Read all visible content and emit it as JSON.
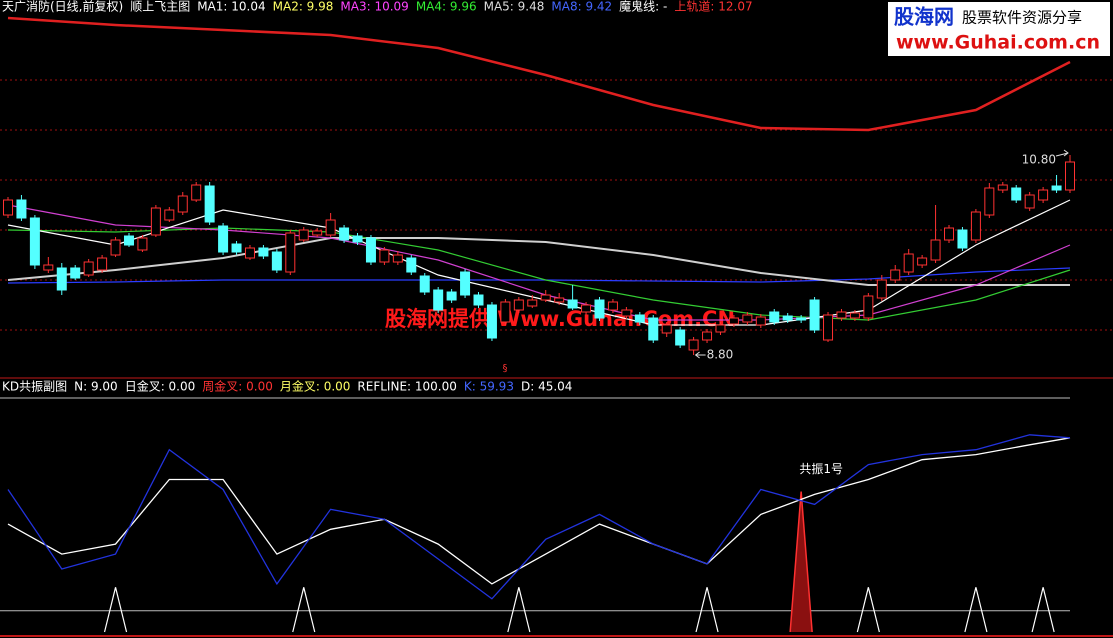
{
  "header": {
    "items": [
      {
        "text": "天广消防(日线,前复权)",
        "color": "#ffffff"
      },
      {
        "text": "顺上飞主图",
        "color": "#ffffff"
      },
      {
        "text": "MA1: 10.04",
        "color": "#ffffff"
      },
      {
        "text": "MA2: 9.98",
        "color": "#ffff66"
      },
      {
        "text": "MA3: 10.09",
        "color": "#ff44ff"
      },
      {
        "text": "MA4: 9.96",
        "color": "#33ee33"
      },
      {
        "text": "MA5: 9.48",
        "color": "#dddddd"
      },
      {
        "text": "MA8: 9.42",
        "color": "#4466ff"
      },
      {
        "text": "魔鬼线: -",
        "color": "#ffffff"
      },
      {
        "text": "上轨道: 12.07",
        "color": "#ff3333"
      }
    ]
  },
  "watermark": {
    "logo": "股海网",
    "slogan": "股票软件资源分享",
    "url": "www.Guhai.com.cn"
  },
  "price_panel": {
    "ylim": [
      8.65,
      12.35
    ],
    "up_color": "#ff3232",
    "down_color": "#54ffff",
    "candles": [
      [
        10.2,
        10.38,
        10.17,
        10.35
      ],
      [
        10.35,
        10.4,
        10.14,
        10.17
      ],
      [
        10.17,
        10.2,
        9.66,
        9.7
      ],
      [
        9.65,
        9.78,
        9.62,
        9.7
      ],
      [
        9.67,
        9.72,
        9.4,
        9.45
      ],
      [
        9.67,
        9.7,
        9.55,
        9.57
      ],
      [
        9.6,
        9.76,
        9.58,
        9.73
      ],
      [
        9.65,
        9.8,
        9.62,
        9.77
      ],
      [
        9.8,
        9.98,
        9.78,
        9.95
      ],
      [
        9.99,
        10.02,
        9.88,
        9.9
      ],
      [
        9.85,
        10.0,
        9.83,
        9.97
      ],
      [
        10.0,
        10.3,
        9.98,
        10.27
      ],
      [
        10.15,
        10.28,
        10.13,
        10.25
      ],
      [
        10.23,
        10.43,
        10.2,
        10.39
      ],
      [
        10.35,
        10.53,
        10.33,
        10.5
      ],
      [
        10.49,
        10.53,
        10.1,
        10.13
      ],
      [
        10.09,
        10.12,
        9.8,
        9.83
      ],
      [
        9.91,
        9.94,
        9.8,
        9.83
      ],
      [
        9.77,
        9.9,
        9.75,
        9.87
      ],
      [
        9.87,
        9.9,
        9.76,
        9.79
      ],
      [
        9.83,
        9.86,
        9.62,
        9.65
      ],
      [
        9.63,
        10.05,
        9.6,
        10.02
      ],
      [
        9.95,
        10.08,
        9.93,
        10.05
      ],
      [
        10.0,
        10.07,
        9.98,
        10.04
      ],
      [
        10.0,
        10.22,
        9.98,
        10.15
      ],
      [
        10.07,
        10.1,
        9.92,
        9.95
      ],
      [
        9.99,
        10.02,
        9.9,
        9.93
      ],
      [
        9.97,
        10.0,
        9.7,
        9.73
      ],
      [
        9.73,
        9.88,
        9.7,
        9.85
      ],
      [
        9.73,
        9.84,
        9.7,
        9.8
      ],
      [
        9.77,
        9.8,
        9.6,
        9.63
      ],
      [
        9.59,
        9.62,
        9.4,
        9.43
      ],
      [
        9.45,
        9.48,
        9.22,
        9.25
      ],
      [
        9.43,
        9.46,
        9.32,
        9.35
      ],
      [
        9.63,
        9.66,
        9.37,
        9.4
      ],
      [
        9.4,
        9.43,
        9.27,
        9.3
      ],
      [
        9.3,
        9.33,
        8.94,
        8.97
      ],
      [
        9.13,
        9.36,
        9.1,
        9.33
      ],
      [
        9.25,
        9.38,
        9.22,
        9.35
      ],
      [
        9.29,
        9.4,
        9.27,
        9.35
      ],
      [
        9.35,
        9.45,
        9.33,
        9.4
      ],
      [
        9.33,
        9.42,
        9.3,
        9.37
      ],
      [
        9.35,
        9.5,
        9.25,
        9.27
      ],
      [
        9.23,
        9.33,
        9.2,
        9.3
      ],
      [
        9.35,
        9.38,
        9.14,
        9.17
      ],
      [
        9.25,
        9.36,
        9.22,
        9.33
      ],
      [
        9.19,
        9.28,
        9.16,
        9.25
      ],
      [
        9.2,
        9.23,
        9.1,
        9.13
      ],
      [
        9.17,
        9.2,
        8.92,
        8.95
      ],
      [
        9.02,
        9.13,
        8.98,
        9.1
      ],
      [
        9.05,
        9.08,
        8.87,
        8.9
      ],
      [
        8.85,
        8.98,
        8.8,
        8.95
      ],
      [
        8.95,
        9.06,
        8.92,
        9.03
      ],
      [
        9.03,
        9.13,
        9.0,
        9.1
      ],
      [
        9.11,
        9.2,
        9.08,
        9.17
      ],
      [
        9.13,
        9.23,
        9.1,
        9.2
      ],
      [
        9.1,
        9.21,
        9.07,
        9.18
      ],
      [
        9.23,
        9.26,
        9.1,
        9.13
      ],
      [
        9.19,
        9.22,
        9.12,
        9.15
      ],
      [
        9.17,
        9.2,
        9.12,
        9.15
      ],
      [
        9.35,
        9.38,
        9.02,
        9.05
      ],
      [
        8.95,
        9.23,
        8.93,
        9.2
      ],
      [
        9.17,
        9.26,
        9.14,
        9.23
      ],
      [
        9.17,
        9.25,
        9.14,
        9.22
      ],
      [
        9.17,
        9.42,
        9.14,
        9.39
      ],
      [
        9.37,
        9.6,
        9.34,
        9.55
      ],
      [
        9.55,
        9.7,
        9.52,
        9.65
      ],
      [
        9.63,
        9.86,
        9.6,
        9.81
      ],
      [
        9.7,
        9.8,
        9.67,
        9.77
      ],
      [
        9.75,
        10.3,
        9.72,
        9.95
      ],
      [
        9.95,
        10.1,
        9.92,
        10.07
      ],
      [
        10.05,
        10.08,
        9.84,
        9.87
      ],
      [
        9.95,
        10.26,
        9.92,
        10.23
      ],
      [
        10.2,
        10.52,
        10.17,
        10.47
      ],
      [
        10.45,
        10.53,
        10.42,
        10.5
      ],
      [
        10.47,
        10.5,
        10.32,
        10.35
      ],
      [
        10.27,
        10.43,
        10.24,
        10.4
      ],
      [
        10.35,
        10.48,
        10.32,
        10.45
      ],
      [
        10.49,
        10.6,
        10.42,
        10.45
      ],
      [
        10.45,
        10.8,
        10.42,
        10.73
      ]
    ],
    "line_x": [
      0,
      8,
      16,
      24,
      32,
      40,
      48,
      56,
      64,
      72,
      79
    ],
    "rail": {
      "color": "#e02020",
      "values": [
        12.17,
        12.1,
        12.05,
        12.0,
        11.87,
        11.6,
        11.3,
        11.07,
        11.05,
        11.25,
        11.73
      ]
    },
    "lines": [
      {
        "color": "#2a3cff",
        "values": [
          9.52,
          9.53,
          9.55,
          9.55,
          9.55,
          9.55,
          9.54,
          9.53,
          9.56,
          9.63,
          9.67
        ]
      },
      {
        "color": "#cfcfcf",
        "values": [
          9.55,
          9.65,
          9.77,
          9.97,
          9.97,
          9.93,
          9.8,
          9.62,
          9.5,
          9.5,
          9.5
        ]
      },
      {
        "color": "#33cc33",
        "values": [
          10.05,
          10.03,
          10.07,
          10.03,
          9.85,
          9.55,
          9.35,
          9.2,
          9.15,
          9.35,
          9.65
        ]
      },
      {
        "color": "#d040d0",
        "values": [
          10.3,
          10.1,
          10.05,
          9.97,
          9.75,
          9.4,
          9.15,
          9.15,
          9.2,
          9.5,
          9.9
        ]
      },
      {
        "color": "#ffffff",
        "values": [
          10.1,
          9.9,
          10.25,
          10.07,
          9.6,
          9.35,
          9.1,
          9.1,
          9.25,
          9.9,
          10.35
        ]
      }
    ],
    "high_label": "10.80",
    "low_label": "8.80",
    "marker": "§",
    "center_watermark": "股海网提供 Www.Guhai.Com.CN"
  },
  "kd_panel": {
    "header": {
      "items": [
        {
          "text": "KD共振副图",
          "color": "#ffffff"
        },
        {
          "text": "N: 9.00",
          "color": "#ffffff"
        },
        {
          "text": "日金叉: 0.00",
          "color": "#ffffff"
        },
        {
          "text": "周金叉: 0.00",
          "color": "#ff3333"
        },
        {
          "text": "月金叉: 0.00",
          "color": "#ffff66"
        },
        {
          "text": "REFLINE: 100.00",
          "color": "#ffffff"
        },
        {
          "text": "K: 59.93",
          "color": "#4466ff"
        },
        {
          "text": "D: 45.04",
          "color": "#ffffff"
        }
      ]
    },
    "ylim": [
      -10,
      100
    ],
    "ref_lines": [
      0,
      100
    ],
    "x": [
      0,
      4,
      8,
      12,
      16,
      20,
      24,
      28,
      32,
      36,
      40,
      44,
      48,
      52,
      56,
      60,
      64,
      68,
      72,
      76,
      79
    ],
    "k": {
      "color": "#2233dd",
      "values": [
        57.0,
        19.6,
        26.6,
        75.7,
        57.0,
        12.6,
        47.7,
        43.0,
        24.3,
        5.6,
        33.6,
        45.3,
        31.3,
        22.0,
        57.0,
        50.0,
        68.7,
        73.4,
        75.7,
        82.7,
        81.3
      ]
    },
    "d": {
      "color": "#ffffff",
      "values": [
        40.7,
        26.6,
        31.3,
        61.7,
        61.7,
        26.6,
        38.3,
        43.0,
        31.3,
        12.6,
        26.6,
        40.7,
        31.3,
        22.0,
        45.3,
        54.7,
        61.7,
        71.0,
        73.4,
        78.0,
        81.3
      ]
    },
    "signals": [
      {
        "index": 8,
        "value": 11,
        "color": "#ffffff"
      },
      {
        "index": 22,
        "value": 11,
        "color": "#ffffff"
      },
      {
        "index": 38,
        "value": 11,
        "color": "#ffffff"
      },
      {
        "index": 52,
        "value": 11,
        "color": "#ffffff"
      },
      {
        "index": 59,
        "value": 56,
        "color": "#ff3030",
        "label": "共振1号"
      },
      {
        "index": 64,
        "value": 11,
        "color": "#ffffff"
      },
      {
        "index": 72,
        "value": 11,
        "color": "#ffffff"
      },
      {
        "index": 77,
        "value": 11,
        "color": "#ffffff"
      }
    ]
  }
}
